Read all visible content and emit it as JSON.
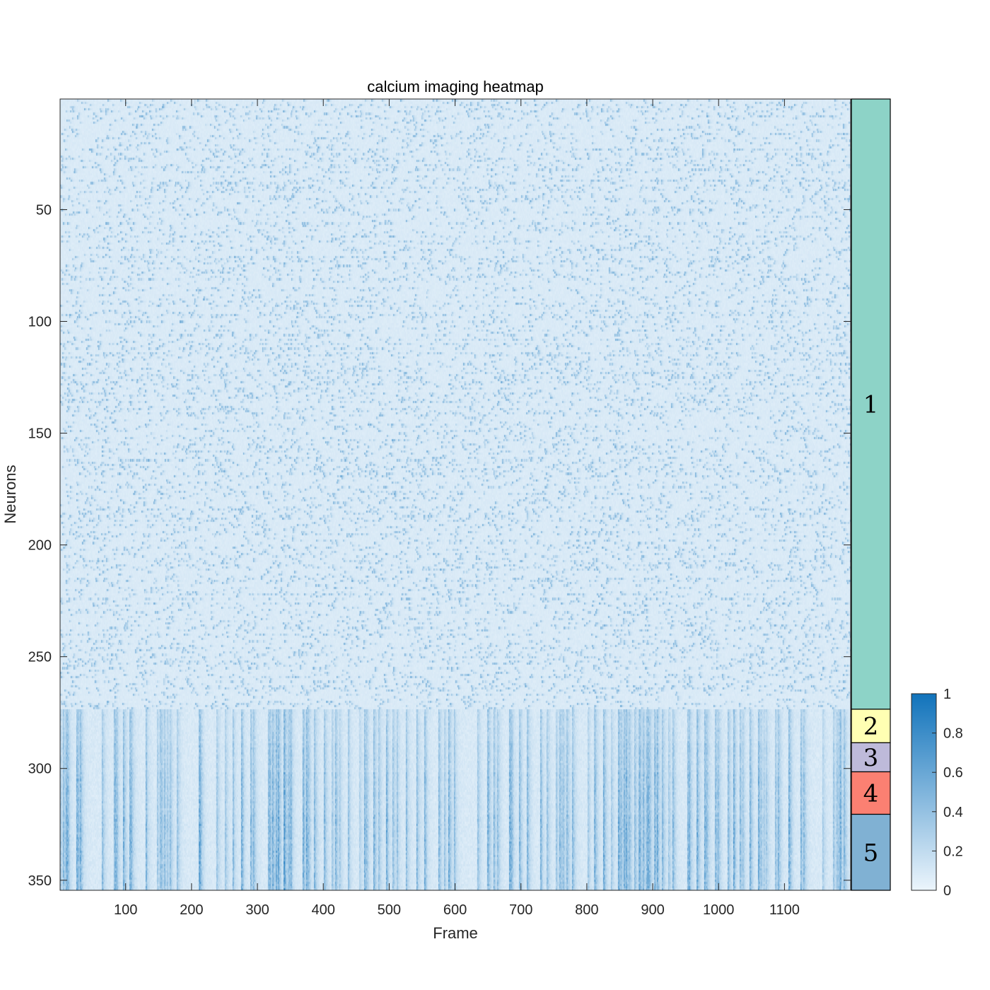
{
  "chart_data": {
    "type": "heatmap",
    "title": "calcium imaging heatmap",
    "xlabel": "Frame",
    "ylabel": "Neurons",
    "xlim": [
      1,
      1200
    ],
    "ylim": [
      1,
      354
    ],
    "y_direction": "reversed",
    "x_ticks": [
      100,
      200,
      300,
      400,
      500,
      600,
      700,
      800,
      900,
      1000,
      1100
    ],
    "y_ticks": [
      50,
      100,
      150,
      200,
      250,
      300,
      350
    ],
    "n_neurons": 354,
    "n_frames": 1200,
    "clusters": [
      {
        "label": "1",
        "start": 1,
        "end": 273,
        "color": "#8dd3c7"
      },
      {
        "label": "2",
        "start": 274,
        "end": 288,
        "color": "#ffffb3"
      },
      {
        "label": "3",
        "start": 289,
        "end": 301,
        "color": "#bebada"
      },
      {
        "label": "4",
        "start": 302,
        "end": 320,
        "color": "#fb8072"
      },
      {
        "label": "5",
        "start": 321,
        "end": 354,
        "color": "#80b1d3"
      }
    ],
    "colorbar": {
      "range": [
        0,
        1
      ],
      "ticks": [
        0,
        0.2,
        0.4,
        0.6,
        0.8,
        1
      ],
      "tick_labels": [
        "0",
        "0.2",
        "0.4",
        "0.6",
        "0.8",
        "1"
      ],
      "color_low": "#ecf5fc",
      "color_high": "#1173bb"
    },
    "grid": false,
    "legend": "none"
  }
}
